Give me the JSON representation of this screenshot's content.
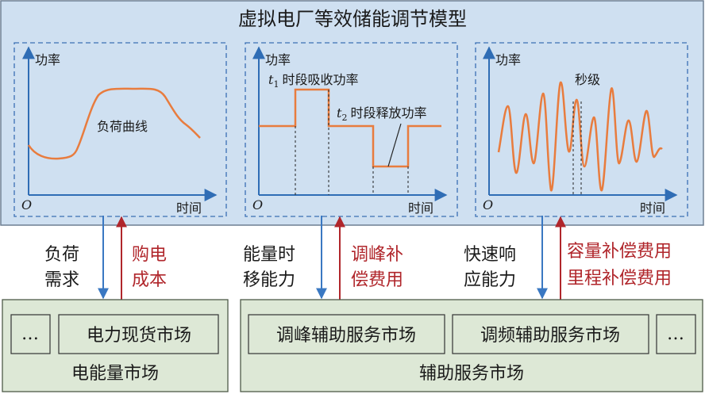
{
  "title": "虚拟电厂等效储能调节模型",
  "axes": {
    "y_label": "功率",
    "x_label": "时间",
    "origin": "O"
  },
  "panels": {
    "load": {
      "curve_label": "负荷曲线"
    },
    "shift": {
      "t1_label": "t1",
      "t1_text": "时段吸收功率",
      "t2_label": "t2",
      "t2_text": "时段释放功率"
    },
    "fast": {
      "label": "秒级"
    }
  },
  "links": [
    {
      "up_text": [
        "负荷",
        "需求"
      ],
      "down_text": [
        "购电",
        "成本"
      ]
    },
    {
      "up_text": [
        "能量时",
        "移能力"
      ],
      "down_text": [
        "调峰补",
        "偿费用"
      ]
    },
    {
      "up_text": [
        "快速响",
        "应能力"
      ],
      "down_text": [
        "容量补偿费用",
        "里程补偿费用"
      ]
    }
  ],
  "markets": {
    "energy": {
      "name": "电能量市场",
      "items": [
        "…",
        "电力现货市场"
      ]
    },
    "ancillary": {
      "name": "辅助服务市场",
      "items": [
        "调峰辅助服务市场",
        "调频辅助服务市场",
        "…"
      ]
    }
  },
  "colors": {
    "top_fill": "#cfe0f1",
    "bottom_fill": "#dde8d6",
    "curve": "#e87c3e",
    "axis": "#2f6db5",
    "dashed": "#3b6fb4",
    "arrow_down": "#3a78c2",
    "arrow_up": "#b0262b",
    "text_red": "#b0262b"
  }
}
